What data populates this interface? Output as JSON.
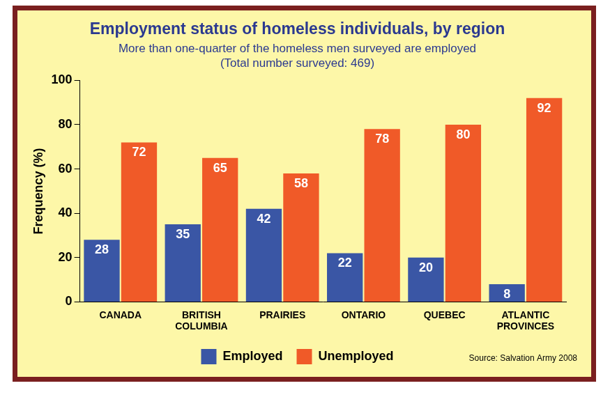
{
  "chart_data": {
    "type": "bar",
    "title": "Employment status of homeless individuals, by region",
    "subtitle": [
      "More than one-quarter of the homeless men surveyed are employed",
      "(Total number surveyed: 469)"
    ],
    "source": "Source: Salvation Army 2008",
    "y_label": "Frequency (%)",
    "categories": [
      "CANADA",
      "BRITISH COLUMBIA",
      "PRAIRIES",
      "ONTARIO",
      "QUEBEC",
      "ATLANTIC PROVINCES"
    ],
    "series": [
      {
        "name": "Employed",
        "color": "#3a56a5",
        "values": [
          28,
          35,
          42,
          22,
          20,
          8
        ]
      },
      {
        "name": "Unemployed",
        "color": "#f05a28",
        "values": [
          72,
          65,
          58,
          78,
          80,
          92
        ]
      }
    ],
    "ylim": [
      0,
      100
    ],
    "yticks": [
      0,
      20,
      40,
      60,
      80,
      100
    ],
    "grid": false,
    "legend": "bottom",
    "data_labels": true
  }
}
